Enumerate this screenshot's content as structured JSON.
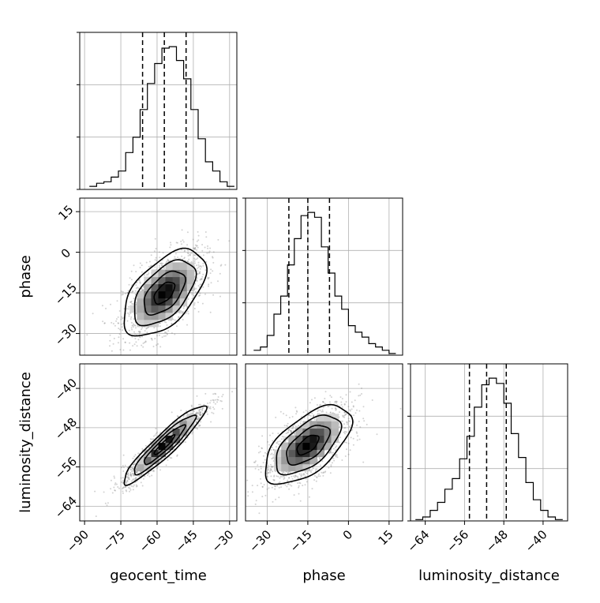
{
  "chart_data": {
    "type": "corner",
    "parameters": [
      {
        "name": "geocent_time",
        "label": "geocent_time",
        "range": [
          -92,
          -27
        ],
        "ticks": [
          -90,
          -75,
          -60,
          -45,
          -30
        ],
        "tick_labels": [
          "−90",
          "−75",
          "−60",
          "−45",
          "−30"
        ],
        "quantiles": [
          -66,
          -57,
          -48
        ],
        "mean": -57,
        "sd": 8.5
      },
      {
        "name": "phase",
        "label": "phase",
        "range": [
          -38,
          20
        ],
        "ticks": [
          -30,
          -15,
          0,
          15
        ],
        "tick_labels": [
          "−30",
          "−15",
          "0",
          "15"
        ],
        "quantiles": [
          -22,
          -15,
          -7
        ],
        "mean": -15,
        "sd": 8
      },
      {
        "name": "luminosity_distance",
        "label": "luminosity_distance",
        "range": [
          -67,
          -35
        ],
        "ticks": [
          -64,
          -56,
          -48,
          -40
        ],
        "tick_labels": [
          "−64",
          "−56",
          "−48",
          "−40"
        ],
        "quantiles": [
          -55,
          -51.5,
          -47.5
        ],
        "mean": -51.5,
        "sd": 4
      }
    ],
    "histograms": {
      "geocent_time": {
        "bin_edges": [
          -88,
          -85,
          -82,
          -79,
          -76,
          -73,
          -70,
          -67,
          -64,
          -61,
          -58,
          -55,
          -52,
          -49,
          -46,
          -43,
          -40,
          -37,
          -34,
          -31,
          -28
        ],
        "counts": [
          2,
          4,
          5,
          8,
          12,
          24,
          34,
          52,
          69,
          82,
          92,
          93,
          84,
          72,
          52,
          33,
          18,
          12,
          5,
          2
        ]
      },
      "phase": {
        "bin_edges": [
          -35,
          -32.5,
          -30,
          -27.5,
          -25,
          -22.5,
          -20,
          -17.5,
          -15,
          -12.5,
          -10,
          -7.5,
          -5,
          -2.5,
          0,
          2.5,
          5,
          7.5,
          10,
          12.5,
          15,
          17.5
        ],
        "counts": [
          3,
          5,
          12,
          25,
          36,
          55,
          71,
          85,
          87,
          84,
          66,
          50,
          36,
          28,
          18,
          14,
          11,
          7,
          5,
          3,
          1
        ]
      },
      "luminosity_distance": {
        "bin_edges": [
          -66,
          -64.5,
          -63,
          -61.5,
          -60,
          -58.5,
          -57,
          -55.5,
          -54,
          -52.5,
          -51,
          -49.5,
          -48,
          -46.5,
          -45,
          -43.5,
          -42,
          -40.5,
          -39,
          -37.5,
          -36
        ],
        "counts": [
          1,
          3,
          8,
          14,
          24,
          32,
          47,
          64,
          86,
          103,
          108,
          104,
          89,
          66,
          48,
          29,
          16,
          8,
          3,
          1
        ]
      }
    },
    "correlations": {
      "geocent_time|phase": 0.55,
      "geocent_time|luminosity_distance": 0.93,
      "phase|luminosity_distance": 0.6
    },
    "grid": true,
    "quantile_line_style": "dashed",
    "colors": {
      "line": "#000000",
      "grid": "#b0b0b0",
      "points": "#7f7f7f"
    }
  }
}
